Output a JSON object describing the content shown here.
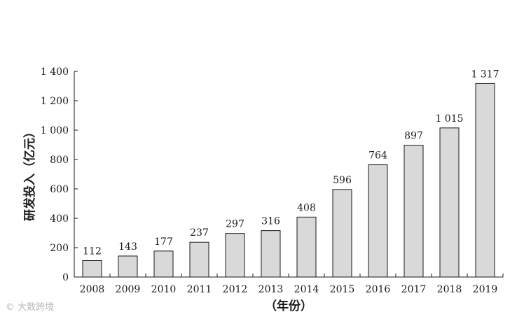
{
  "chart_data": {
    "type": "bar",
    "categories": [
      "2008",
      "2009",
      "2010",
      "2011",
      "2012",
      "2013",
      "2014",
      "2015",
      "2016",
      "2017",
      "2018",
      "2019"
    ],
    "values": [
      112,
      143,
      177,
      237,
      297,
      316,
      408,
      596,
      764,
      897,
      1015,
      1317
    ],
    "value_labels": [
      "112",
      "143",
      "177",
      "237",
      "297",
      "316",
      "408",
      "596",
      "764",
      "897",
      "1 015",
      "1 317"
    ],
    "ylabel": "研发投入（亿元）",
    "xlabel": "（年份）",
    "ylim": [
      0,
      1400
    ],
    "yticks": [
      0,
      200,
      400,
      600,
      800,
      1000,
      1200,
      1400
    ],
    "ytick_labels": [
      "0",
      "200",
      "400",
      "600",
      "800",
      "1 000",
      "1 200",
      "1 400"
    ],
    "bar_color": "#d9d9d9",
    "bar_edge_color": "#1a1a1a",
    "grid": false,
    "legend": "none"
  },
  "watermark": "© 大数跨境"
}
